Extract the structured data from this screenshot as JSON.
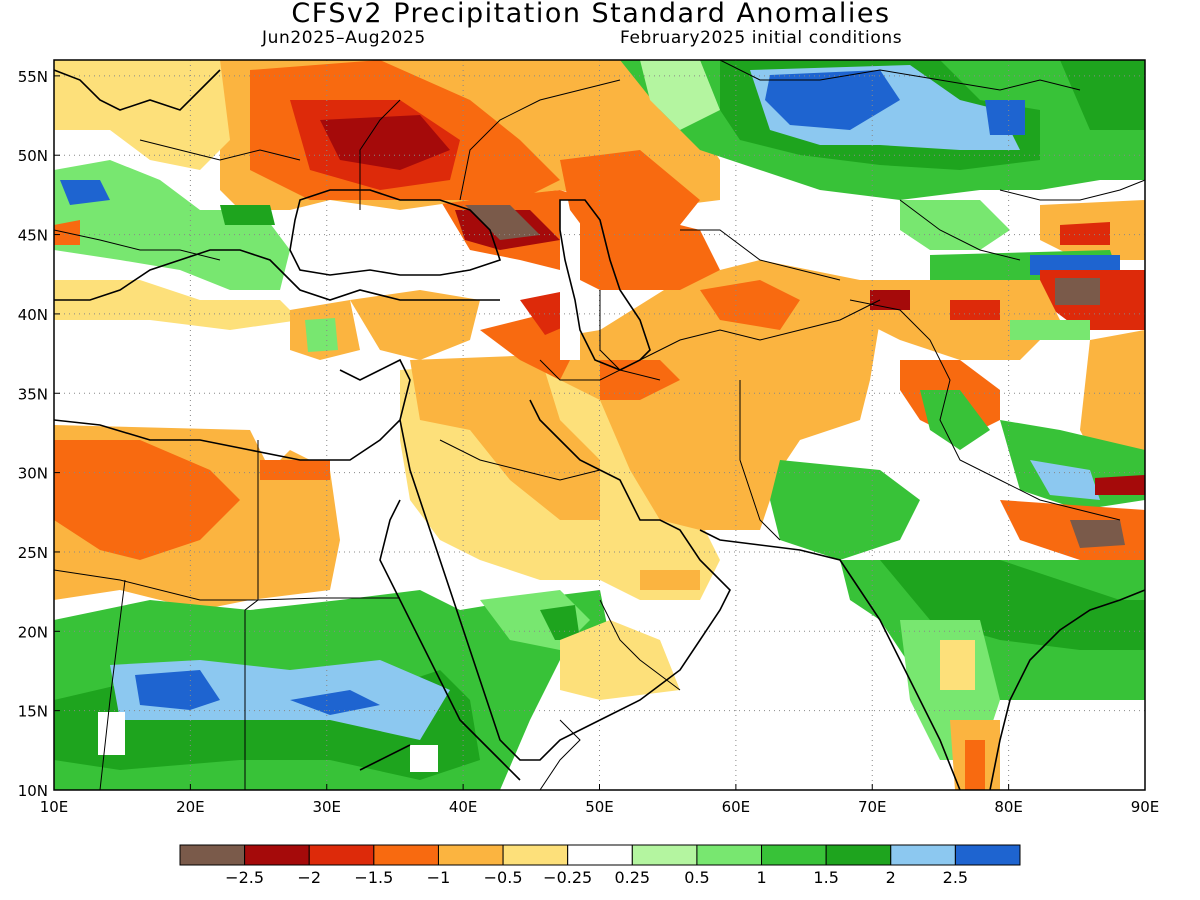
{
  "title": "CFSv2 Precipitation Standard Anomalies",
  "subtitle_left": "Jun2025–Aug2025",
  "subtitle_right": "February2025 initial conditions",
  "map": {
    "lon_range": [
      10,
      90
    ],
    "lat_range": [
      10,
      56
    ],
    "x_ticks": [
      {
        "value": 10,
        "label": "10E"
      },
      {
        "value": 20,
        "label": "20E"
      },
      {
        "value": 30,
        "label": "30E"
      },
      {
        "value": 40,
        "label": "40E"
      },
      {
        "value": 50,
        "label": "50E"
      },
      {
        "value": 60,
        "label": "60E"
      },
      {
        "value": 70,
        "label": "70E"
      },
      {
        "value": 80,
        "label": "80E"
      },
      {
        "value": 90,
        "label": "90E"
      }
    ],
    "y_ticks": [
      {
        "value": 10,
        "label": "10N"
      },
      {
        "value": 15,
        "label": "15N"
      },
      {
        "value": 20,
        "label": "20N"
      },
      {
        "value": 25,
        "label": "25N"
      },
      {
        "value": 30,
        "label": "30N"
      },
      {
        "value": 35,
        "label": "35N"
      },
      {
        "value": 40,
        "label": "40N"
      },
      {
        "value": 45,
        "label": "45N"
      },
      {
        "value": 50,
        "label": "50N"
      },
      {
        "value": 55,
        "label": "55N"
      }
    ],
    "grid": "dotted"
  },
  "colorbar": {
    "colors": [
      "#7a5a4a",
      "#a50a0a",
      "#dd2a0a",
      "#f86a10",
      "#fbb440",
      "#fde07a",
      "#ffffff",
      "#b4f5a0",
      "#78e770",
      "#38c238",
      "#1ea41e",
      "#8cc8f0",
      "#1e64d0"
    ],
    "labels": [
      "−2.5",
      "−2",
      "−1.5",
      "−1",
      "−0.5",
      "−0.25",
      "0.25",
      "0.5",
      "1",
      "1.5",
      "2",
      "2.5"
    ]
  }
}
